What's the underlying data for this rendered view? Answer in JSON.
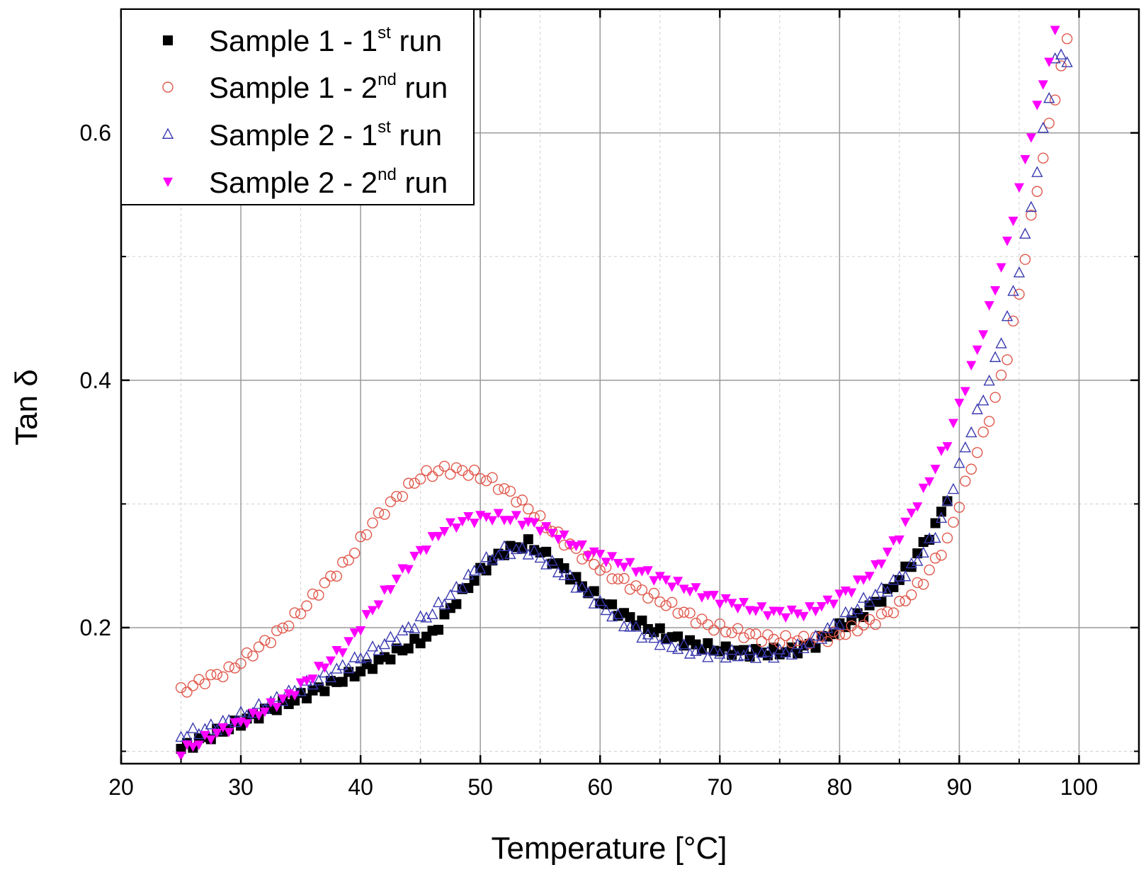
{
  "chart_data": {
    "type": "scatter",
    "title": "",
    "xlabel": "Temperature [°C]",
    "ylabel": "Tan δ",
    "xlim": [
      20,
      105
    ],
    "ylim": [
      0.09,
      0.7
    ],
    "x_ticks": [
      20,
      30,
      40,
      50,
      60,
      70,
      80,
      90,
      100
    ],
    "y_ticks": [
      0.2,
      0.4,
      0.6
    ],
    "grid": true,
    "legend_position": "top-left",
    "series": [
      {
        "name_main": "Sample 1 - 1",
        "name_sup": "st",
        "name_end": " run",
        "marker": "filled-square",
        "color": "#000000",
        "anchors": [
          [
            25,
            0.102
          ],
          [
            28,
            0.115
          ],
          [
            31,
            0.128
          ],
          [
            34,
            0.14
          ],
          [
            37,
            0.152
          ],
          [
            40,
            0.165
          ],
          [
            43,
            0.18
          ],
          [
            46,
            0.195
          ],
          [
            48,
            0.222
          ],
          [
            50,
            0.245
          ],
          [
            52,
            0.262
          ],
          [
            54,
            0.268
          ],
          [
            56,
            0.255
          ],
          [
            58,
            0.238
          ],
          [
            60,
            0.222
          ],
          [
            62,
            0.21
          ],
          [
            64,
            0.2
          ],
          [
            66,
            0.192
          ],
          [
            68,
            0.186
          ],
          [
            70,
            0.182
          ],
          [
            72,
            0.18
          ],
          [
            74,
            0.18
          ],
          [
            76,
            0.181
          ],
          [
            78,
            0.187
          ],
          [
            80,
            0.2
          ],
          [
            82,
            0.212
          ],
          [
            84,
            0.228
          ],
          [
            86,
            0.252
          ],
          [
            88,
            0.282
          ],
          [
            89,
            0.305
          ]
        ]
      },
      {
        "name_main": "Sample 1 - 2",
        "name_sup": "nd",
        "name_end": " run",
        "marker": "open-circle",
        "color": "#e0584c",
        "anchors": [
          [
            25,
            0.148
          ],
          [
            27,
            0.158
          ],
          [
            29,
            0.165
          ],
          [
            31,
            0.18
          ],
          [
            33,
            0.195
          ],
          [
            35,
            0.213
          ],
          [
            37,
            0.235
          ],
          [
            39,
            0.255
          ],
          [
            41,
            0.285
          ],
          [
            43,
            0.305
          ],
          [
            45,
            0.322
          ],
          [
            47,
            0.328
          ],
          [
            49,
            0.326
          ],
          [
            51,
            0.318
          ],
          [
            53,
            0.305
          ],
          [
            55,
            0.287
          ],
          [
            57,
            0.27
          ],
          [
            59,
            0.255
          ],
          [
            61,
            0.242
          ],
          [
            63,
            0.232
          ],
          [
            65,
            0.222
          ],
          [
            67,
            0.212
          ],
          [
            69,
            0.202
          ],
          [
            71,
            0.197
          ],
          [
            73,
            0.193
          ],
          [
            75,
            0.19
          ],
          [
            77,
            0.19
          ],
          [
            79,
            0.192
          ],
          [
            81,
            0.198
          ],
          [
            83,
            0.206
          ],
          [
            85,
            0.218
          ],
          [
            87,
            0.238
          ],
          [
            89,
            0.27
          ],
          [
            90,
            0.3
          ],
          [
            91,
            0.33
          ],
          [
            92,
            0.355
          ],
          [
            93,
            0.385
          ],
          [
            94,
            0.42
          ],
          [
            95,
            0.47
          ],
          [
            96,
            0.53
          ],
          [
            97,
            0.58
          ],
          [
            98,
            0.63
          ],
          [
            99,
            0.675
          ]
        ]
      },
      {
        "name_main": "Sample 2 - 1",
        "name_sup": "st",
        "name_end": " run",
        "marker": "open-triangle-up",
        "color": "#3a3ab0",
        "anchors": [
          [
            25,
            0.112
          ],
          [
            28,
            0.12
          ],
          [
            31,
            0.132
          ],
          [
            34,
            0.146
          ],
          [
            37,
            0.16
          ],
          [
            40,
            0.175
          ],
          [
            43,
            0.192
          ],
          [
            46,
            0.212
          ],
          [
            48,
            0.23
          ],
          [
            50,
            0.25
          ],
          [
            52,
            0.262
          ],
          [
            54,
            0.262
          ],
          [
            56,
            0.25
          ],
          [
            58,
            0.235
          ],
          [
            60,
            0.218
          ],
          [
            62,
            0.203
          ],
          [
            64,
            0.192
          ],
          [
            66,
            0.185
          ],
          [
            68,
            0.18
          ],
          [
            70,
            0.178
          ],
          [
            72,
            0.178
          ],
          [
            74,
            0.178
          ],
          [
            76,
            0.18
          ],
          [
            78,
            0.19
          ],
          [
            80,
            0.205
          ],
          [
            82,
            0.22
          ],
          [
            84,
            0.232
          ],
          [
            86,
            0.248
          ],
          [
            88,
            0.275
          ],
          [
            89,
            0.3
          ],
          [
            90,
            0.33
          ],
          [
            91,
            0.36
          ],
          [
            92,
            0.385
          ],
          [
            93,
            0.415
          ],
          [
            94,
            0.45
          ],
          [
            95,
            0.49
          ],
          [
            96,
            0.54
          ],
          [
            97,
            0.6
          ],
          [
            98,
            0.66
          ],
          [
            99,
            0.66
          ]
        ]
      },
      {
        "name_main": "Sample 2 - 2",
        "name_sup": "nd",
        "name_end": " run",
        "marker": "filled-triangle-down",
        "color": "#ff00ff",
        "anchors": [
          [
            25,
            0.1
          ],
          [
            28,
            0.115
          ],
          [
            31,
            0.128
          ],
          [
            34,
            0.145
          ],
          [
            37,
            0.17
          ],
          [
            39,
            0.188
          ],
          [
            41,
            0.215
          ],
          [
            43,
            0.24
          ],
          [
            45,
            0.262
          ],
          [
            47,
            0.28
          ],
          [
            49,
            0.288
          ],
          [
            51,
            0.29
          ],
          [
            53,
            0.288
          ],
          [
            55,
            0.282
          ],
          [
            57,
            0.272
          ],
          [
            59,
            0.262
          ],
          [
            61,
            0.255
          ],
          [
            63,
            0.248
          ],
          [
            65,
            0.24
          ],
          [
            67,
            0.233
          ],
          [
            69,
            0.226
          ],
          [
            71,
            0.22
          ],
          [
            73,
            0.215
          ],
          [
            75,
            0.212
          ],
          [
            77,
            0.212
          ],
          [
            79,
            0.22
          ],
          [
            81,
            0.232
          ],
          [
            83,
            0.248
          ],
          [
            85,
            0.275
          ],
          [
            87,
            0.31
          ],
          [
            89,
            0.35
          ],
          [
            90,
            0.38
          ],
          [
            91,
            0.41
          ],
          [
            92,
            0.44
          ],
          [
            93,
            0.475
          ],
          [
            94,
            0.51
          ],
          [
            95,
            0.555
          ],
          [
            96,
            0.6
          ],
          [
            97,
            0.64
          ],
          [
            98,
            0.68
          ]
        ]
      }
    ]
  }
}
